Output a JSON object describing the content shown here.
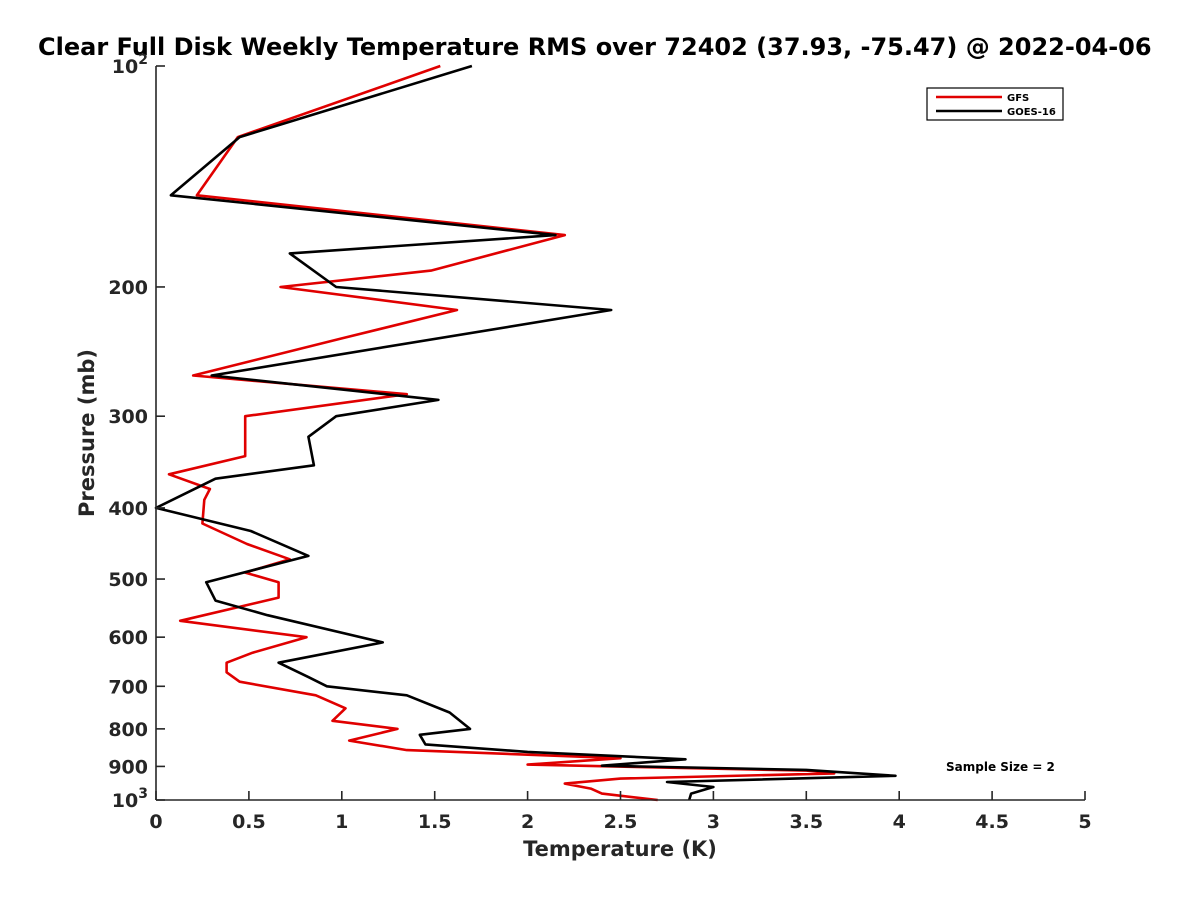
{
  "chart_data": {
    "type": "line",
    "title": "Clear Full Disk Weekly Temperature RMS over 72402 (37.93, -75.47) @ 2022-04-06",
    "xlabel": "Temperature (K)",
    "ylabel": "Pressure (mb)",
    "xlim": [
      0,
      5
    ],
    "ylim": [
      100,
      1000
    ],
    "yscale": "log",
    "y_reversed": true,
    "x_ticks": [
      0,
      0.5,
      1,
      1.5,
      2,
      2.5,
      3,
      3.5,
      4,
      4.5,
      5
    ],
    "x_tick_labels": [
      "0",
      "0.5",
      "1",
      "1.5",
      "2",
      "2.5",
      "3",
      "3.5",
      "4",
      "4.5",
      "5"
    ],
    "y_ticks": [
      {
        "value": 100,
        "base": "10",
        "exp": "2"
      },
      {
        "value": 200,
        "label": "200"
      },
      {
        "value": 300,
        "label": "300"
      },
      {
        "value": 400,
        "label": "400"
      },
      {
        "value": 500,
        "label": "500"
      },
      {
        "value": 600,
        "label": "600"
      },
      {
        "value": 700,
        "label": "700"
      },
      {
        "value": 800,
        "label": "800"
      },
      {
        "value": 900,
        "label": "900"
      },
      {
        "value": 1000,
        "base": "10",
        "exp": "3"
      }
    ],
    "legend": {
      "location": "top-right",
      "entries": [
        "GFS",
        "GOES-16"
      ]
    },
    "annotation": "Sample Size = 2",
    "series": [
      {
        "name": "GFS",
        "color": "#e00000",
        "points": [
          [
            1.53,
            100
          ],
          [
            0.44,
            125
          ],
          [
            0.22,
            150
          ],
          [
            2.2,
            170
          ],
          [
            1.48,
            190
          ],
          [
            0.67,
            200
          ],
          [
            1.62,
            215
          ],
          [
            1.0,
            235
          ],
          [
            0.2,
            264
          ],
          [
            1.35,
            280
          ],
          [
            0.48,
            300
          ],
          [
            0.48,
            340
          ],
          [
            0.07,
            360
          ],
          [
            0.29,
            377
          ],
          [
            0.26,
            390
          ],
          [
            0.25,
            420
          ],
          [
            0.49,
            448
          ],
          [
            0.72,
            470
          ],
          [
            0.48,
            490
          ],
          [
            0.66,
            505
          ],
          [
            0.66,
            530
          ],
          [
            0.13,
            570
          ],
          [
            0.81,
            600
          ],
          [
            0.52,
            630
          ],
          [
            0.38,
            650
          ],
          [
            0.38,
            670
          ],
          [
            0.45,
            690
          ],
          [
            0.86,
            720
          ],
          [
            1.02,
            750
          ],
          [
            0.95,
            780
          ],
          [
            1.3,
            800
          ],
          [
            1.04,
            830
          ],
          [
            1.35,
            855
          ],
          [
            2.5,
            877
          ],
          [
            2.0,
            895
          ],
          [
            3.5,
            912
          ],
          [
            3.65,
            920
          ],
          [
            2.5,
            935
          ],
          [
            2.2,
            950
          ],
          [
            2.34,
            965
          ],
          [
            2.4,
            980
          ],
          [
            2.7,
            1000
          ]
        ]
      },
      {
        "name": "GOES-16",
        "color": "#000000",
        "points": [
          [
            1.7,
            100
          ],
          [
            0.45,
            125
          ],
          [
            0.08,
            150
          ],
          [
            2.15,
            170
          ],
          [
            0.72,
            180
          ],
          [
            0.97,
            200
          ],
          [
            2.45,
            215
          ],
          [
            0.3,
            264
          ],
          [
            1.52,
            285
          ],
          [
            0.97,
            300
          ],
          [
            0.82,
            320
          ],
          [
            0.85,
            350
          ],
          [
            0.32,
            365
          ],
          [
            0.0,
            400
          ],
          [
            0.51,
            430
          ],
          [
            0.82,
            465
          ],
          [
            0.27,
            505
          ],
          [
            0.32,
            535
          ],
          [
            0.6,
            560
          ],
          [
            1.22,
            610
          ],
          [
            0.66,
            650
          ],
          [
            0.82,
            680
          ],
          [
            0.92,
            700
          ],
          [
            1.35,
            720
          ],
          [
            1.58,
            760
          ],
          [
            1.69,
            800
          ],
          [
            1.42,
            815
          ],
          [
            1.45,
            840
          ],
          [
            2.0,
            860
          ],
          [
            2.85,
            880
          ],
          [
            2.4,
            898
          ],
          [
            3.5,
            910
          ],
          [
            3.98,
            927
          ],
          [
            2.75,
            945
          ],
          [
            3.0,
            960
          ],
          [
            2.88,
            980
          ],
          [
            2.87,
            1000
          ]
        ]
      }
    ]
  }
}
